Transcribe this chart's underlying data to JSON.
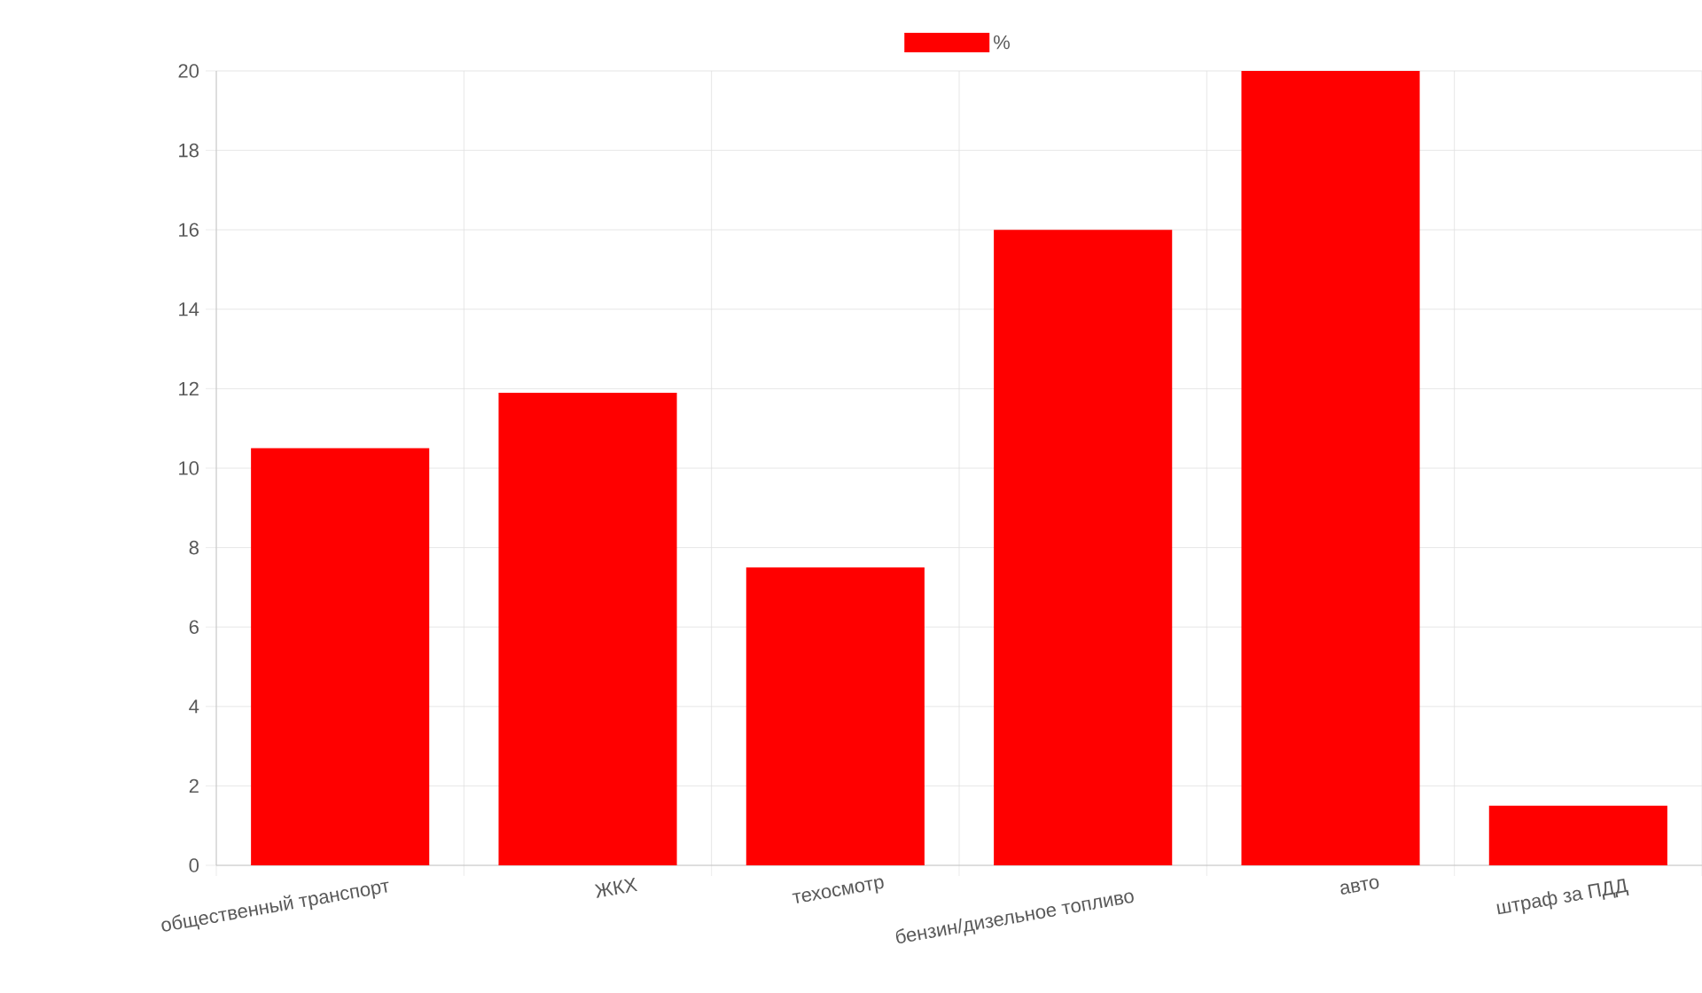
{
  "chart_data": {
    "type": "bar",
    "categories": [
      "общественный транспорт",
      "ЖКХ",
      "техосмотр",
      "бензин/дизельное топливо",
      "авто",
      "штраф за ПДД"
    ],
    "series": [
      {
        "name": "%",
        "color": "#ff0000",
        "values": [
          10.5,
          11.9,
          7.5,
          16,
          20,
          1.5
        ]
      }
    ],
    "ylim": [
      0,
      20
    ],
    "yticks": [
      0,
      2,
      4,
      6,
      8,
      10,
      12,
      14,
      16,
      18,
      20
    ],
    "grid": true,
    "legend": "top"
  }
}
